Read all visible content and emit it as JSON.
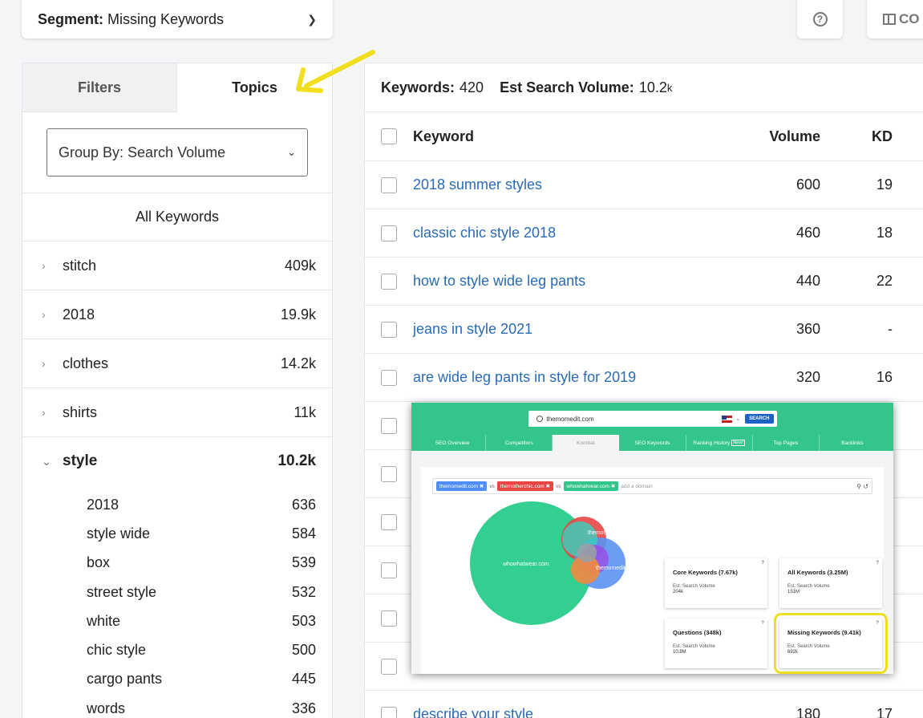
{
  "segment": {
    "label": "Segment:",
    "value": "Missing Keywords"
  },
  "toolbar": {
    "columns_label": "CO"
  },
  "tabs": {
    "filters": "Filters",
    "topics": "Topics"
  },
  "group_by": "Group By: Search Volume",
  "all_keywords": "All Keywords",
  "topics": [
    {
      "name": "stitch",
      "count": "409k"
    },
    {
      "name": "2018",
      "count": "19.9k"
    },
    {
      "name": "clothes",
      "count": "14.2k"
    },
    {
      "name": "shirts",
      "count": "11k"
    },
    {
      "name": "style",
      "count": "10.2k"
    }
  ],
  "style_children": [
    {
      "name": "2018",
      "count": "636"
    },
    {
      "name": "style wide",
      "count": "584"
    },
    {
      "name": "box",
      "count": "539"
    },
    {
      "name": "street style",
      "count": "532"
    },
    {
      "name": "white",
      "count": "503"
    },
    {
      "name": "chic style",
      "count": "500"
    },
    {
      "name": "cargo pants",
      "count": "445"
    },
    {
      "name": "words",
      "count": "336"
    }
  ],
  "summary": {
    "keywords_label": "Keywords:",
    "keywords_value": "420",
    "volume_label": "Est Search Volume:",
    "volume_value": "10.2",
    "volume_unit": "k"
  },
  "table": {
    "headers": {
      "keyword": "Keyword",
      "volume": "Volume",
      "kd": "KD"
    },
    "rows": [
      {
        "keyword": "2018 summer styles",
        "volume": "600",
        "kd": "19"
      },
      {
        "keyword": "classic chic style 2018",
        "volume": "460",
        "kd": "18"
      },
      {
        "keyword": "how to style wide leg pants",
        "volume": "440",
        "kd": "22"
      },
      {
        "keyword": "jeans in style 2021",
        "volume": "360",
        "kd": "-"
      },
      {
        "keyword": "are wide leg pants in style for 2019",
        "volume": "320",
        "kd": "16"
      },
      {
        "keyword": "",
        "volume": "",
        "kd": ""
      },
      {
        "keyword": "",
        "volume": "",
        "kd": ""
      },
      {
        "keyword": "",
        "volume": "",
        "kd": ""
      },
      {
        "keyword": "",
        "volume": "",
        "kd": ""
      },
      {
        "keyword": "",
        "volume": "",
        "kd": ""
      },
      {
        "keyword": "",
        "volume": "",
        "kd": ""
      },
      {
        "keyword": "describe your style",
        "volume": "180",
        "kd": "17"
      }
    ]
  },
  "embedded": {
    "search_value": "themomedit.com",
    "search_button": "SEARCH",
    "nav": [
      "SEO Overview",
      "Competitors",
      "Kombat",
      "SEO Keywords",
      "Ranking History",
      "Top Pages",
      "Backlinks"
    ],
    "nav_new_badge": "New!",
    "domains": [
      {
        "name": "themomedit.com",
        "color": "#4e8ef5"
      },
      {
        "name": "themotherchic.com",
        "color": "#e84545"
      },
      {
        "name": "whowhatwear.com",
        "color": "#33c58a"
      }
    ],
    "vs": "vs",
    "add_domain": "add a domain",
    "venn_labels": {
      "big": "whowhatwear.com",
      "red": "themotherchi",
      "blue": "themomedit.com"
    },
    "cards": [
      {
        "title": "Core Keywords (7.67k)",
        "label": "Est. Search Volume",
        "value": "204k"
      },
      {
        "title": "All Keywords (3.25M)",
        "label": "Est. Search Volume",
        "value": "151M"
      },
      {
        "title": "Questions (348k)",
        "label": "Est. Search Volume",
        "value": "10.8M"
      },
      {
        "title": "Missing Keywords (9.41k)",
        "label": "Est. Search Volume",
        "value": "692k"
      }
    ],
    "highlight_color": "#f1de1d"
  }
}
